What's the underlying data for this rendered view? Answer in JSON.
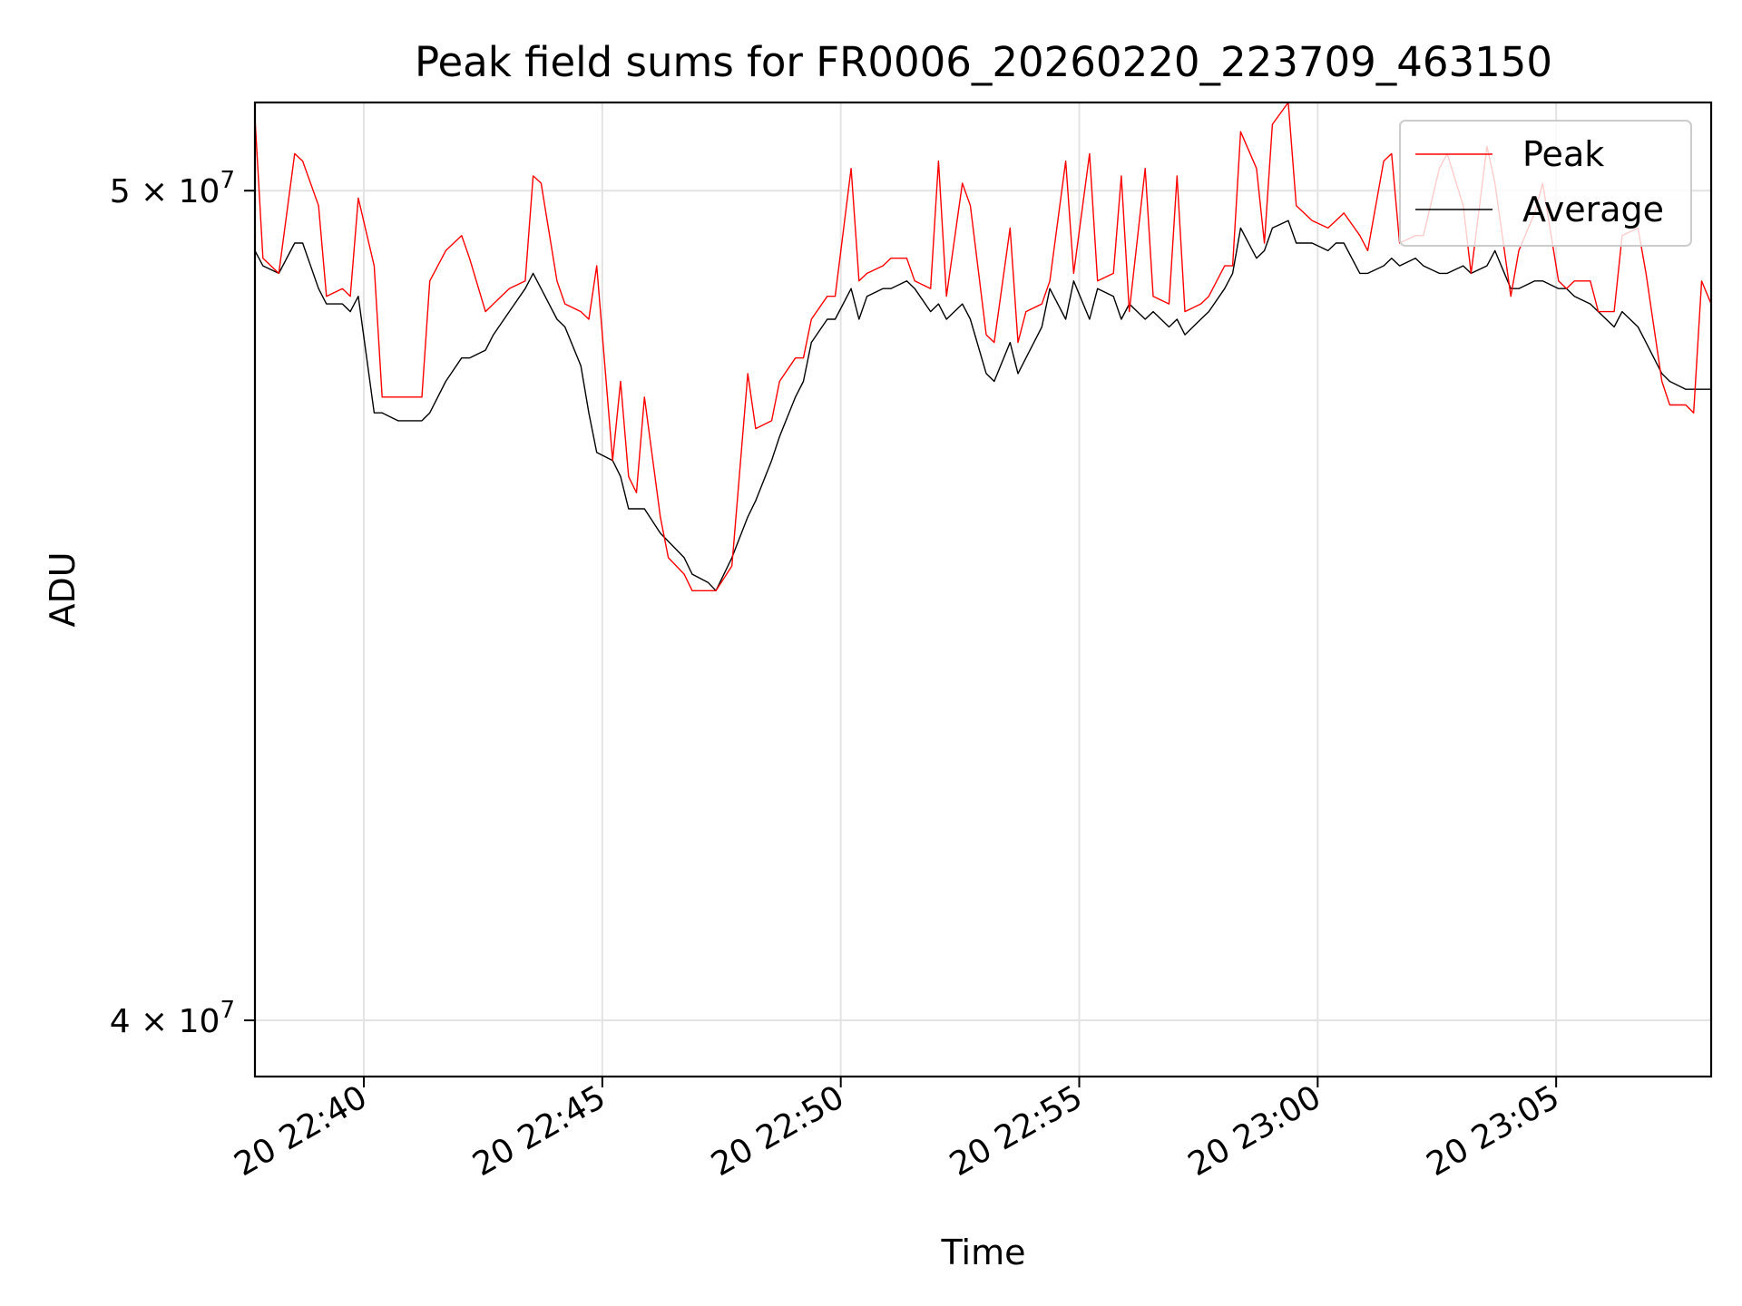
{
  "chart_data": {
    "type": "line",
    "title": "Peak field sums for FR0006_20260220_223709_463150",
    "xlabel": "Time",
    "ylabel": "ADU",
    "x_ticks": [
      "20 22:40",
      "20 22:45",
      "20 22:50",
      "20 22:55",
      "20 23:00",
      "20 23:05"
    ],
    "y_ticks": [
      {
        "value": 50000000,
        "label": "5 × 10^7",
        "mant": "5",
        "exp": "7"
      },
      {
        "value": 40000000,
        "label": "4 × 10^7",
        "mant": "4",
        "exp": "7"
      }
    ],
    "xlim": [
      "2026-02-20 22:37:43",
      "2026-02-20 23:08:15"
    ],
    "ylim": [
      39400000,
      51200000
    ],
    "yscale": "log",
    "grid": true,
    "legend": {
      "location": "upper right",
      "entries": [
        "Peak",
        "Average"
      ]
    },
    "series": [
      {
        "name": "Peak",
        "color": "#ff0000",
        "points": [
          [
            "22:37:43",
            51000000
          ],
          [
            "22:37:53",
            49100000
          ],
          [
            "22:38:13",
            48900000
          ],
          [
            "22:38:33",
            50500000
          ],
          [
            "22:38:43",
            50400000
          ],
          [
            "22:39:03",
            49800000
          ],
          [
            "22:39:13",
            48600000
          ],
          [
            "22:39:33",
            48700000
          ],
          [
            "22:39:43",
            48600000
          ],
          [
            "22:39:53",
            49900000
          ],
          [
            "22:40:13",
            49000000
          ],
          [
            "22:40:23",
            47300000
          ],
          [
            "22:40:43",
            47300000
          ],
          [
            "22:40:53",
            47300000
          ],
          [
            "22:41:13",
            47300000
          ],
          [
            "22:41:23",
            48800000
          ],
          [
            "22:41:43",
            49200000
          ],
          [
            "22:42:03",
            49400000
          ],
          [
            "22:42:13",
            49100000
          ],
          [
            "22:42:33",
            48400000
          ],
          [
            "22:42:43",
            48500000
          ],
          [
            "22:43:03",
            48700000
          ],
          [
            "22:43:23",
            48800000
          ],
          [
            "22:43:33",
            50200000
          ],
          [
            "22:43:43",
            50100000
          ],
          [
            "22:44:03",
            48800000
          ],
          [
            "22:44:13",
            48500000
          ],
          [
            "22:44:33",
            48400000
          ],
          [
            "22:44:43",
            48300000
          ],
          [
            "22:44:53",
            49000000
          ],
          [
            "22:45:13",
            46500000
          ],
          [
            "22:45:23",
            47500000
          ],
          [
            "22:45:33",
            46300000
          ],
          [
            "22:45:43",
            46100000
          ],
          [
            "22:45:53",
            47300000
          ],
          [
            "22:46:13",
            45800000
          ],
          [
            "22:46:23",
            45300000
          ],
          [
            "22:46:43",
            45100000
          ],
          [
            "22:46:53",
            44900000
          ],
          [
            "22:47:13",
            44900000
          ],
          [
            "22:47:23",
            44900000
          ],
          [
            "22:47:43",
            45200000
          ],
          [
            "22:48:03",
            47600000
          ],
          [
            "22:48:13",
            46900000
          ],
          [
            "22:48:33",
            47000000
          ],
          [
            "22:48:43",
            47500000
          ],
          [
            "22:49:03",
            47800000
          ],
          [
            "22:49:13",
            47800000
          ],
          [
            "22:49:23",
            48300000
          ],
          [
            "22:49:43",
            48600000
          ],
          [
            "22:49:53",
            48600000
          ],
          [
            "22:50:13",
            50300000
          ],
          [
            "22:50:23",
            48800000
          ],
          [
            "22:50:33",
            48900000
          ],
          [
            "22:50:53",
            49000000
          ],
          [
            "22:51:03",
            49100000
          ],
          [
            "22:51:23",
            49100000
          ],
          [
            "22:51:33",
            48800000
          ],
          [
            "22:51:53",
            48700000
          ],
          [
            "22:52:03",
            50400000
          ],
          [
            "22:52:13",
            48600000
          ],
          [
            "22:52:33",
            50100000
          ],
          [
            "22:52:43",
            49800000
          ],
          [
            "22:53:03",
            48100000
          ],
          [
            "22:53:13",
            48000000
          ],
          [
            "22:53:33",
            49500000
          ],
          [
            "22:53:43",
            48000000
          ],
          [
            "22:53:53",
            48400000
          ],
          [
            "22:54:13",
            48500000
          ],
          [
            "22:54:23",
            48800000
          ],
          [
            "22:54:43",
            50400000
          ],
          [
            "22:54:53",
            48900000
          ],
          [
            "22:55:13",
            50500000
          ],
          [
            "22:55:23",
            48800000
          ],
          [
            "22:55:43",
            48900000
          ],
          [
            "22:55:53",
            50200000
          ],
          [
            "22:56:03",
            48400000
          ],
          [
            "22:56:23",
            50300000
          ],
          [
            "22:56:33",
            48600000
          ],
          [
            "22:56:53",
            48500000
          ],
          [
            "22:57:03",
            50200000
          ],
          [
            "22:57:13",
            48400000
          ],
          [
            "22:57:33",
            48500000
          ],
          [
            "22:57:43",
            48600000
          ],
          [
            "22:58:03",
            49000000
          ],
          [
            "22:58:13",
            49000000
          ],
          [
            "22:58:23",
            50800000
          ],
          [
            "22:58:43",
            50300000
          ],
          [
            "22:58:53",
            49300000
          ],
          [
            "22:59:03",
            50900000
          ],
          [
            "22:59:23",
            51200000
          ],
          [
            "22:59:33",
            49800000
          ],
          [
            "22:59:53",
            49600000
          ],
          [
            "23:00:13",
            49500000
          ],
          [
            "23:00:23",
            49600000
          ],
          [
            "23:00:33",
            49700000
          ],
          [
            "23:00:53",
            49400000
          ],
          [
            "23:01:03",
            49200000
          ],
          [
            "23:01:23",
            50400000
          ],
          [
            "23:01:33",
            50500000
          ],
          [
            "23:01:43",
            49300000
          ],
          [
            "23:02:03",
            49400000
          ],
          [
            "23:02:13",
            49400000
          ],
          [
            "23:02:33",
            50300000
          ],
          [
            "23:02:43",
            50500000
          ],
          [
            "23:03:03",
            49800000
          ],
          [
            "23:03:13",
            48900000
          ],
          [
            "23:03:33",
            50600000
          ],
          [
            "23:03:43",
            50100000
          ],
          [
            "23:04:03",
            48600000
          ],
          [
            "23:04:13",
            49200000
          ],
          [
            "23:04:33",
            49700000
          ],
          [
            "23:04:43",
            50100000
          ],
          [
            "23:05:03",
            48800000
          ],
          [
            "23:05:13",
            48700000
          ],
          [
            "23:05:23",
            48800000
          ],
          [
            "23:05:43",
            48800000
          ],
          [
            "23:05:53",
            48400000
          ],
          [
            "23:06:13",
            48400000
          ],
          [
            "23:06:23",
            49400000
          ],
          [
            "23:06:43",
            49500000
          ],
          [
            "23:06:53",
            48900000
          ],
          [
            "23:07:13",
            47500000
          ],
          [
            "23:07:23",
            47200000
          ],
          [
            "23:07:43",
            47200000
          ],
          [
            "23:07:53",
            47100000
          ],
          [
            "23:08:03",
            48800000
          ],
          [
            "23:08:15",
            48500000
          ]
        ]
      },
      {
        "name": "Average",
        "color": "#000000",
        "points": [
          [
            "22:37:43",
            49200000
          ],
          [
            "22:37:53",
            49000000
          ],
          [
            "22:38:13",
            48900000
          ],
          [
            "22:38:33",
            49300000
          ],
          [
            "22:38:43",
            49300000
          ],
          [
            "22:39:03",
            48700000
          ],
          [
            "22:39:13",
            48500000
          ],
          [
            "22:39:33",
            48500000
          ],
          [
            "22:39:43",
            48400000
          ],
          [
            "22:39:53",
            48600000
          ],
          [
            "22:40:13",
            47100000
          ],
          [
            "22:40:23",
            47100000
          ],
          [
            "22:40:43",
            47000000
          ],
          [
            "22:40:53",
            47000000
          ],
          [
            "22:41:13",
            47000000
          ],
          [
            "22:41:23",
            47100000
          ],
          [
            "22:41:43",
            47500000
          ],
          [
            "22:42:03",
            47800000
          ],
          [
            "22:42:13",
            47800000
          ],
          [
            "22:42:33",
            47900000
          ],
          [
            "22:42:43",
            48100000
          ],
          [
            "22:43:03",
            48400000
          ],
          [
            "22:43:23",
            48700000
          ],
          [
            "22:43:33",
            48900000
          ],
          [
            "22:43:43",
            48700000
          ],
          [
            "22:44:03",
            48300000
          ],
          [
            "22:44:13",
            48200000
          ],
          [
            "22:44:33",
            47700000
          ],
          [
            "22:44:43",
            47100000
          ],
          [
            "22:44:53",
            46600000
          ],
          [
            "22:45:13",
            46500000
          ],
          [
            "22:45:23",
            46300000
          ],
          [
            "22:45:33",
            45900000
          ],
          [
            "22:45:43",
            45900000
          ],
          [
            "22:45:53",
            45900000
          ],
          [
            "22:46:13",
            45600000
          ],
          [
            "22:46:23",
            45500000
          ],
          [
            "22:46:43",
            45300000
          ],
          [
            "22:46:53",
            45100000
          ],
          [
            "22:47:13",
            45000000
          ],
          [
            "22:47:23",
            44900000
          ],
          [
            "22:47:43",
            45300000
          ],
          [
            "22:48:03",
            45800000
          ],
          [
            "22:48:13",
            46000000
          ],
          [
            "22:48:33",
            46500000
          ],
          [
            "22:48:43",
            46800000
          ],
          [
            "22:49:03",
            47300000
          ],
          [
            "22:49:13",
            47500000
          ],
          [
            "22:49:23",
            48000000
          ],
          [
            "22:49:43",
            48300000
          ],
          [
            "22:49:53",
            48300000
          ],
          [
            "22:50:13",
            48700000
          ],
          [
            "22:50:23",
            48300000
          ],
          [
            "22:50:33",
            48600000
          ],
          [
            "22:50:53",
            48700000
          ],
          [
            "22:51:03",
            48700000
          ],
          [
            "22:51:23",
            48800000
          ],
          [
            "22:51:33",
            48700000
          ],
          [
            "22:51:53",
            48400000
          ],
          [
            "22:52:03",
            48500000
          ],
          [
            "22:52:13",
            48300000
          ],
          [
            "22:52:33",
            48500000
          ],
          [
            "22:52:43",
            48300000
          ],
          [
            "22:53:03",
            47600000
          ],
          [
            "22:53:13",
            47500000
          ],
          [
            "22:53:33",
            48000000
          ],
          [
            "22:53:43",
            47600000
          ],
          [
            "22:53:53",
            47800000
          ],
          [
            "22:54:13",
            48200000
          ],
          [
            "22:54:23",
            48700000
          ],
          [
            "22:54:43",
            48300000
          ],
          [
            "22:54:53",
            48800000
          ],
          [
            "22:55:13",
            48300000
          ],
          [
            "22:55:23",
            48700000
          ],
          [
            "22:55:43",
            48600000
          ],
          [
            "22:55:53",
            48300000
          ],
          [
            "22:56:03",
            48500000
          ],
          [
            "22:56:23",
            48300000
          ],
          [
            "22:56:33",
            48400000
          ],
          [
            "22:56:53",
            48200000
          ],
          [
            "22:57:03",
            48300000
          ],
          [
            "22:57:13",
            48100000
          ],
          [
            "22:57:33",
            48300000
          ],
          [
            "22:57:43",
            48400000
          ],
          [
            "22:58:03",
            48700000
          ],
          [
            "22:58:13",
            48900000
          ],
          [
            "22:58:23",
            49500000
          ],
          [
            "22:58:43",
            49100000
          ],
          [
            "22:58:53",
            49200000
          ],
          [
            "22:59:03",
            49500000
          ],
          [
            "22:59:23",
            49600000
          ],
          [
            "22:59:33",
            49300000
          ],
          [
            "22:59:53",
            49300000
          ],
          [
            "23:00:13",
            49200000
          ],
          [
            "23:00:23",
            49300000
          ],
          [
            "23:00:33",
            49300000
          ],
          [
            "23:00:53",
            48900000
          ],
          [
            "23:01:03",
            48900000
          ],
          [
            "23:01:23",
            49000000
          ],
          [
            "23:01:33",
            49100000
          ],
          [
            "23:01:43",
            49000000
          ],
          [
            "23:02:03",
            49100000
          ],
          [
            "23:02:13",
            49000000
          ],
          [
            "23:02:33",
            48900000
          ],
          [
            "23:02:43",
            48900000
          ],
          [
            "23:03:03",
            49000000
          ],
          [
            "23:03:13",
            48900000
          ],
          [
            "23:03:33",
            49000000
          ],
          [
            "23:03:43",
            49200000
          ],
          [
            "23:04:03",
            48700000
          ],
          [
            "23:04:13",
            48700000
          ],
          [
            "23:04:33",
            48800000
          ],
          [
            "23:04:43",
            48800000
          ],
          [
            "23:05:03",
            48700000
          ],
          [
            "23:05:13",
            48700000
          ],
          [
            "23:05:23",
            48600000
          ],
          [
            "23:05:43",
            48500000
          ],
          [
            "23:05:53",
            48400000
          ],
          [
            "23:06:13",
            48200000
          ],
          [
            "23:06:23",
            48400000
          ],
          [
            "23:06:43",
            48200000
          ],
          [
            "23:06:53",
            48000000
          ],
          [
            "23:07:13",
            47600000
          ],
          [
            "23:07:23",
            47500000
          ],
          [
            "23:07:43",
            47400000
          ],
          [
            "23:07:53",
            47400000
          ],
          [
            "23:08:03",
            47400000
          ],
          [
            "23:08:15",
            47400000
          ]
        ]
      }
    ]
  }
}
